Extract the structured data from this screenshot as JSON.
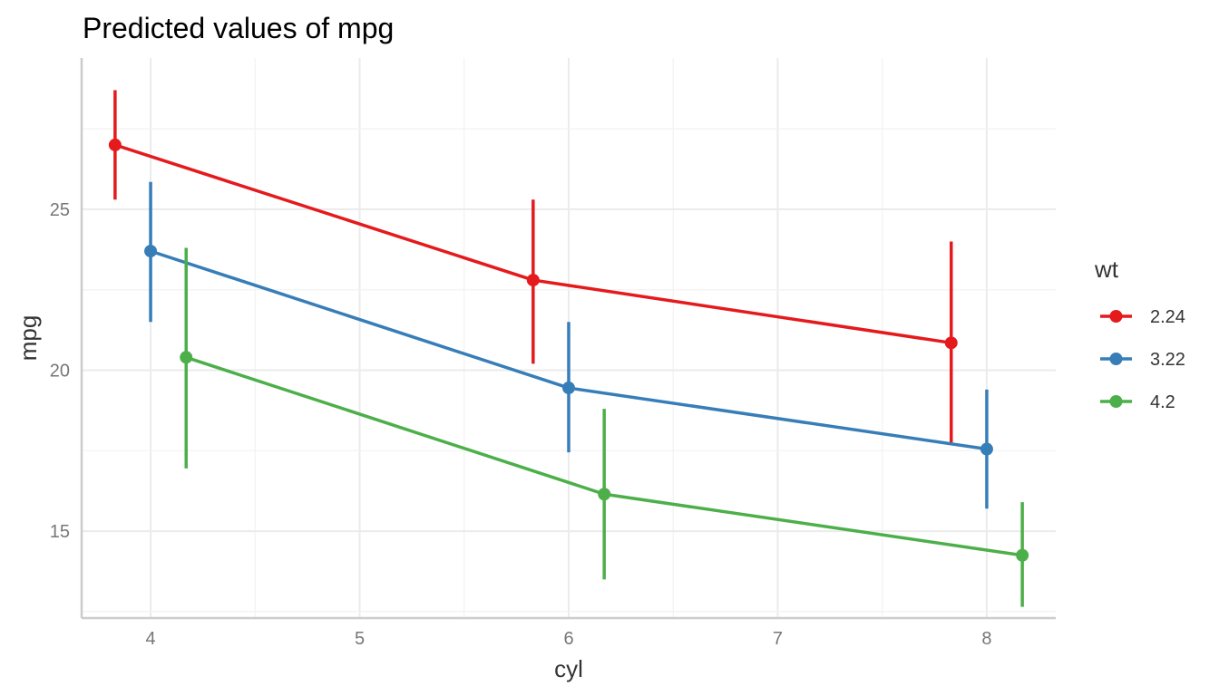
{
  "chart_data": {
    "type": "line",
    "title": "Predicted values of mpg",
    "xlabel": "cyl",
    "ylabel": "mpg",
    "x_ticks": [
      4,
      5,
      6,
      7,
      8
    ],
    "y_ticks": [
      15,
      20,
      25
    ],
    "xlim": [
      3.67,
      8.33
    ],
    "ylim": [
      12.3,
      29.7
    ],
    "grid": true,
    "legend": {
      "title": "wt",
      "position": "right"
    },
    "series": [
      {
        "name": "2.24",
        "color": "#E41A1C",
        "x": [
          4,
          6,
          8
        ],
        "y": [
          27.0,
          22.8,
          20.85
        ],
        "lower": [
          25.3,
          20.2,
          17.75
        ],
        "upper": [
          28.7,
          25.3,
          24.0
        ]
      },
      {
        "name": "3.22",
        "color": "#377EB8",
        "x": [
          4,
          6,
          8
        ],
        "y": [
          23.7,
          19.45,
          17.55
        ],
        "lower": [
          21.5,
          17.45,
          15.7
        ],
        "upper": [
          25.85,
          21.5,
          19.4
        ]
      },
      {
        "name": "4.2",
        "color": "#4DAF4A",
        "x": [
          4,
          6,
          8
        ],
        "y": [
          20.4,
          16.15,
          14.25
        ],
        "lower": [
          16.95,
          13.5,
          12.65
        ],
        "upper": [
          23.8,
          18.8,
          15.9
        ]
      }
    ]
  }
}
